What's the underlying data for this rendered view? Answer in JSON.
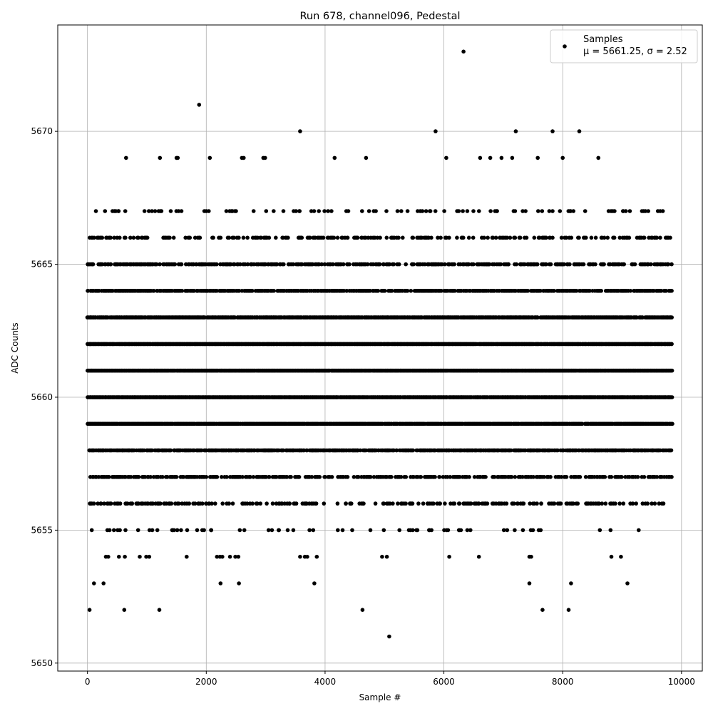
{
  "chart_data": {
    "type": "scatter",
    "title": "Run 678, channel096, Pedestal",
    "xlabel": "Sample #",
    "ylabel": "ADC Counts",
    "xlim": [
      -500,
      10350
    ],
    "ylim": [
      5649.7,
      5674.0
    ],
    "xticks": [
      0,
      2000,
      4000,
      6000,
      8000,
      10000
    ],
    "yticks": [
      5650,
      5655,
      5660,
      5665,
      5670
    ],
    "grid": true,
    "legend": {
      "location": "upper-right",
      "label": "Samples",
      "stats": "μ = 5661.25, σ = 2.52"
    },
    "series": [
      {
        "name": "Samples",
        "color": "#000000",
        "marker": "circle",
        "x_range": [
          0,
          9850
        ],
        "band_levels": [
          5655,
          5656,
          5657,
          5658,
          5659,
          5660,
          5661,
          5662,
          5663,
          5664,
          5665,
          5666,
          5667
        ],
        "band_density": [
          0.07,
          0.25,
          0.45,
          0.72,
          0.92,
          0.98,
          0.99,
          0.97,
          0.88,
          0.65,
          0.45,
          0.27,
          0.12
        ],
        "outliers": [
          {
            "x": 35,
            "y": 5652
          },
          {
            "x": 620,
            "y": 5652
          },
          {
            "x": 1210,
            "y": 5652
          },
          {
            "x": 4630,
            "y": 5652
          },
          {
            "x": 7660,
            "y": 5652
          },
          {
            "x": 8100,
            "y": 5652
          },
          {
            "x": 5080,
            "y": 5651
          },
          {
            "x": 110,
            "y": 5653
          },
          {
            "x": 270,
            "y": 5653
          },
          {
            "x": 2240,
            "y": 5653
          },
          {
            "x": 2550,
            "y": 5653
          },
          {
            "x": 3820,
            "y": 5653
          },
          {
            "x": 7440,
            "y": 5653
          },
          {
            "x": 8140,
            "y": 5653
          },
          {
            "x": 9090,
            "y": 5653
          },
          {
            "x": 310,
            "y": 5654
          },
          {
            "x": 350,
            "y": 5654
          },
          {
            "x": 530,
            "y": 5654
          },
          {
            "x": 630,
            "y": 5654
          },
          {
            "x": 880,
            "y": 5654
          },
          {
            "x": 990,
            "y": 5654
          },
          {
            "x": 1040,
            "y": 5654
          },
          {
            "x": 1670,
            "y": 5654
          },
          {
            "x": 2180,
            "y": 5654
          },
          {
            "x": 2230,
            "y": 5654
          },
          {
            "x": 2270,
            "y": 5654
          },
          {
            "x": 2400,
            "y": 5654
          },
          {
            "x": 2490,
            "y": 5654
          },
          {
            "x": 2540,
            "y": 5654
          },
          {
            "x": 3580,
            "y": 5654
          },
          {
            "x": 3660,
            "y": 5654
          },
          {
            "x": 3700,
            "y": 5654
          },
          {
            "x": 3860,
            "y": 5654
          },
          {
            "x": 4960,
            "y": 5654
          },
          {
            "x": 5040,
            "y": 5654
          },
          {
            "x": 6090,
            "y": 5654
          },
          {
            "x": 6590,
            "y": 5654
          },
          {
            "x": 7440,
            "y": 5654
          },
          {
            "x": 7470,
            "y": 5654
          },
          {
            "x": 8820,
            "y": 5654
          },
          {
            "x": 8980,
            "y": 5654
          },
          {
            "x": 1520,
            "y": 5669
          },
          {
            "x": 2060,
            "y": 5669
          },
          {
            "x": 2600,
            "y": 5669
          },
          {
            "x": 2630,
            "y": 5669
          },
          {
            "x": 2960,
            "y": 5669
          },
          {
            "x": 2990,
            "y": 5669
          },
          {
            "x": 4160,
            "y": 5669
          },
          {
            "x": 4690,
            "y": 5669
          },
          {
            "x": 6040,
            "y": 5669
          },
          {
            "x": 6610,
            "y": 5669
          },
          {
            "x": 6780,
            "y": 5669
          },
          {
            "x": 6970,
            "y": 5669
          },
          {
            "x": 7150,
            "y": 5669
          },
          {
            "x": 7580,
            "y": 5669
          },
          {
            "x": 8000,
            "y": 5669
          },
          {
            "x": 8600,
            "y": 5669
          },
          {
            "x": 650,
            "y": 5669
          },
          {
            "x": 1220,
            "y": 5669
          },
          {
            "x": 1500,
            "y": 5669
          },
          {
            "x": 3580,
            "y": 5670
          },
          {
            "x": 5860,
            "y": 5670
          },
          {
            "x": 7210,
            "y": 5670
          },
          {
            "x": 7830,
            "y": 5670
          },
          {
            "x": 8280,
            "y": 5670
          },
          {
            "x": 1880,
            "y": 5671
          },
          {
            "x": 6330,
            "y": 5673
          }
        ]
      }
    ]
  }
}
